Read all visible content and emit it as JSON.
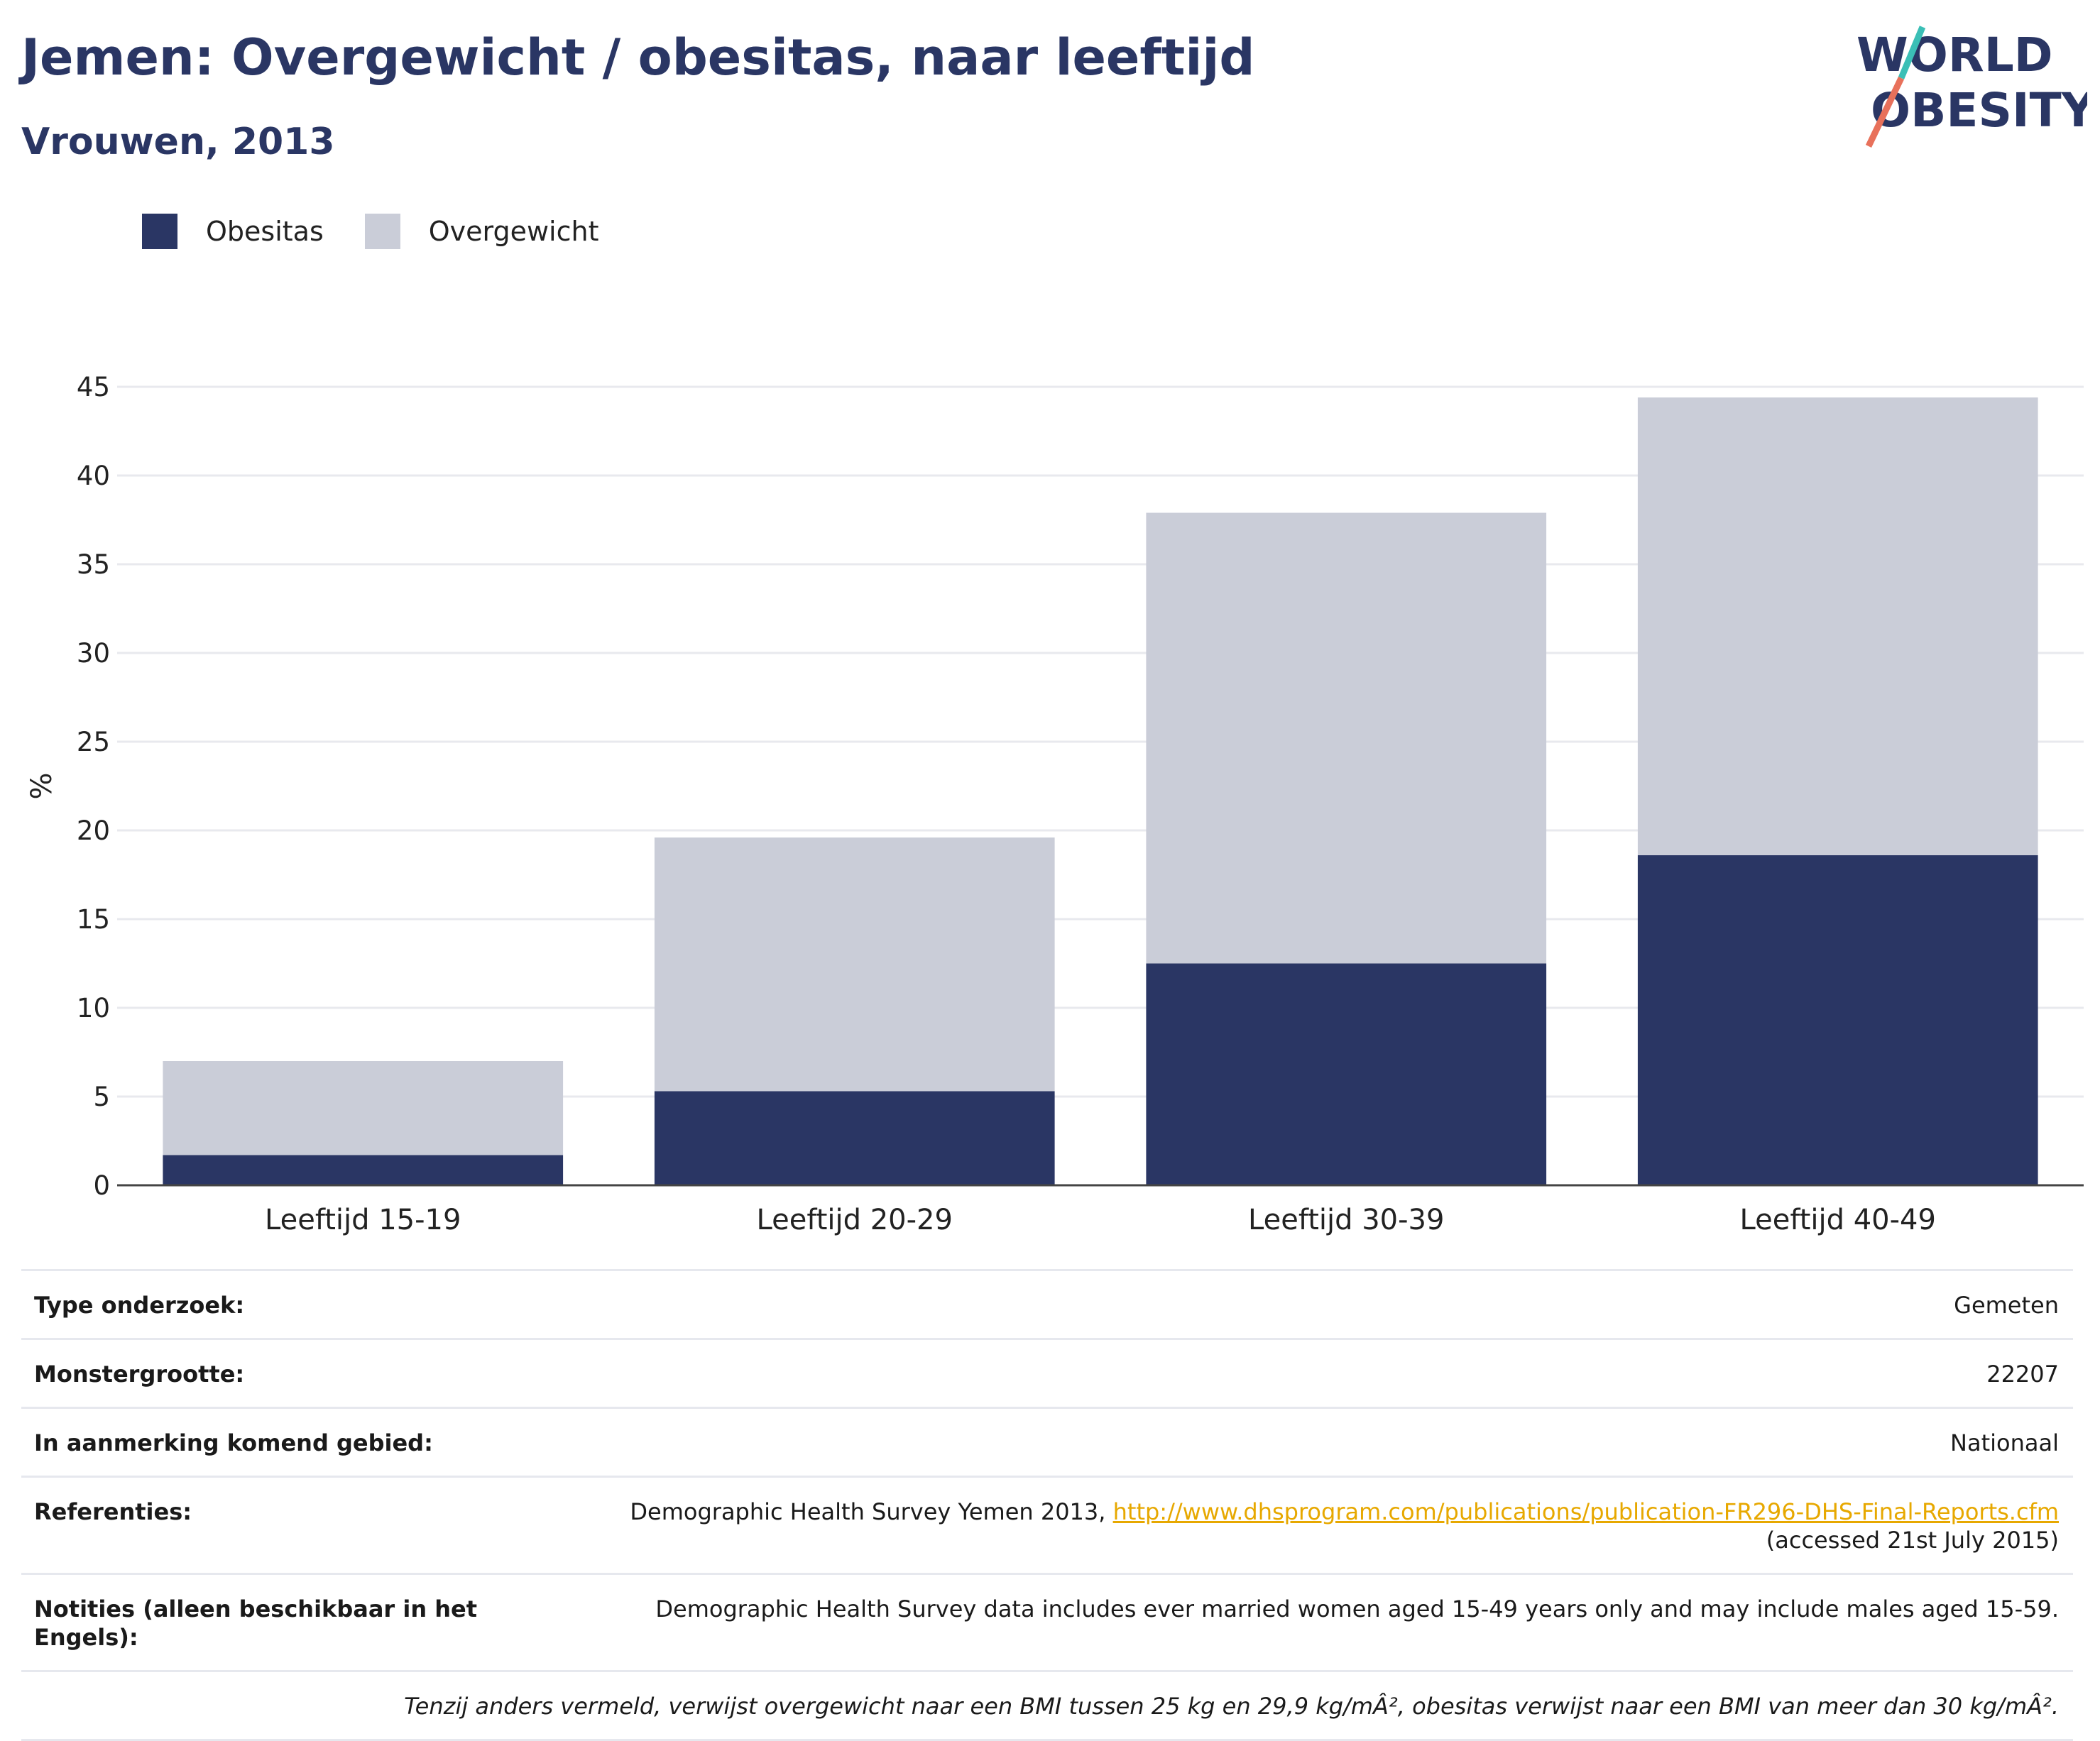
{
  "title": "Jemen: Overgewicht / obesitas, naar leeftijd",
  "subtitle": "Vrouwen, 2013",
  "logo": {
    "line1": "WORLD",
    "line2": "OBESITY"
  },
  "colors": {
    "obesitas": "#2a3664",
    "overgewicht": "#cacdd8",
    "title": "#2a3664",
    "accent_teal": "#3bbfb6",
    "accent_coral": "#e8715b",
    "link": "#e7a800"
  },
  "legend": [
    {
      "label": "Obesitas",
      "color": "#2a3664"
    },
    {
      "label": "Overgewicht",
      "color": "#cacdd8"
    }
  ],
  "chart_data": {
    "type": "bar",
    "stacked": true,
    "categories": [
      "Leeftijd 15-19",
      "Leeftijd 20-29",
      "Leeftijd 30-39",
      "Leeftijd 40-49"
    ],
    "series": [
      {
        "name": "Obesitas",
        "values": [
          1.7,
          5.3,
          12.5,
          18.6
        ]
      },
      {
        "name": "Overgewicht",
        "values": [
          5.3,
          14.3,
          25.4,
          25.8
        ]
      }
    ],
    "ylabel": "%",
    "ylim": [
      0,
      45
    ],
    "yticks": [
      0,
      5,
      10,
      15,
      20,
      25,
      30,
      35,
      40,
      45
    ],
    "grid": true,
    "legend_position": "top-left"
  },
  "info": {
    "type_label": "Type onderzoek:",
    "type_value": "Gemeten",
    "sample_label": "Monstergrootte:",
    "sample_value": "22207",
    "area_label": "In aanmerking komend gebied:",
    "area_value": "Nationaal",
    "ref_label": "Referenties:",
    "ref_text": "Demographic Health Survey Yemen 2013, ",
    "ref_link": "http://www.dhsprogram.com/publications/publication-FR296-DHS-Final-Reports.cfm",
    "ref_accessed": "(accessed 21st July 2015)",
    "notes_label": "Notities (alleen beschikbaar in het Engels):",
    "notes_value": "Demographic Health Survey data includes ever married women aged 15-49 years only and may include males aged 15-59.",
    "footnote": "Tenzij anders vermeld, verwijst overgewicht naar een BMI tussen 25 kg en 29,9 kg/mÂ², obesitas verwijst naar een BMI van meer dan 30 kg/mÂ²."
  }
}
